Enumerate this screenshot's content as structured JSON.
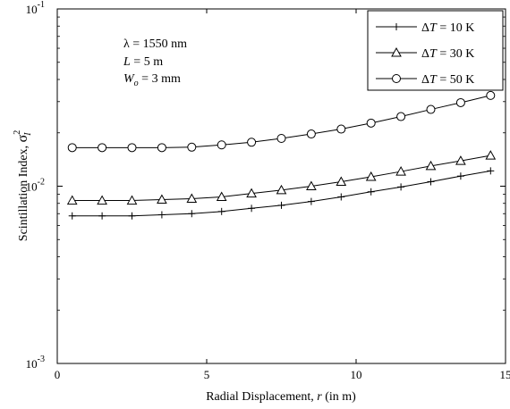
{
  "chart_data": {
    "type": "line",
    "y_scale": "log",
    "xlim": [
      0,
      15
    ],
    "ylim": [
      0.001,
      0.1
    ],
    "x_ticks": [
      0,
      5,
      10,
      15
    ],
    "y_ticks": [
      {
        "value": 0.001,
        "base": "10",
        "exp": "-3"
      },
      {
        "value": 0.01,
        "base": "10",
        "exp": "-2"
      },
      {
        "value": 0.1,
        "base": "10",
        "exp": "-1"
      }
    ],
    "xlabel": {
      "prefix": "Radial Displacement,  ",
      "var": "r",
      "suffix": " (in m)"
    },
    "ylabel": {
      "prefix": "Scintillation Index,  ",
      "sym": "σ",
      "sup": "2",
      "sub": "I"
    },
    "annotations": {
      "lambda": "λ = 1550 nm",
      "L_var": "L",
      "L_rest": " = 5 m",
      "W_var": "W",
      "W_sub": "o",
      "W_rest": " = 3 mm"
    },
    "legend_position": "top-right",
    "x": [
      0.5,
      1.5,
      2.5,
      3.5,
      4.5,
      5.5,
      6.5,
      7.5,
      8.5,
      9.5,
      10.5,
      11.5,
      12.5,
      13.5,
      14.5
    ],
    "series": [
      {
        "name_prefix": "Δ",
        "name_var": "T",
        "name_rest": " = 10 K",
        "marker": "plus",
        "values": [
          0.0068,
          0.0068,
          0.0068,
          0.0069,
          0.007,
          0.0072,
          0.0075,
          0.0078,
          0.0082,
          0.0087,
          0.0093,
          0.0099,
          0.0106,
          0.0114,
          0.0122
        ]
      },
      {
        "name_prefix": "Δ",
        "name_var": "T",
        "name_rest": " = 30 K",
        "marker": "triangle",
        "values": [
          0.0083,
          0.0083,
          0.0083,
          0.0084,
          0.0085,
          0.0087,
          0.0091,
          0.0095,
          0.01,
          0.0106,
          0.0113,
          0.0121,
          0.013,
          0.0139,
          0.0149
        ]
      },
      {
        "name_prefix": "Δ",
        "name_var": "T",
        "name_rest": " = 50 K",
        "marker": "circle",
        "values": [
          0.0165,
          0.0165,
          0.0165,
          0.0165,
          0.0166,
          0.0171,
          0.0177,
          0.0186,
          0.0197,
          0.021,
          0.0227,
          0.0247,
          0.0271,
          0.0296,
          0.0325
        ]
      }
    ]
  }
}
